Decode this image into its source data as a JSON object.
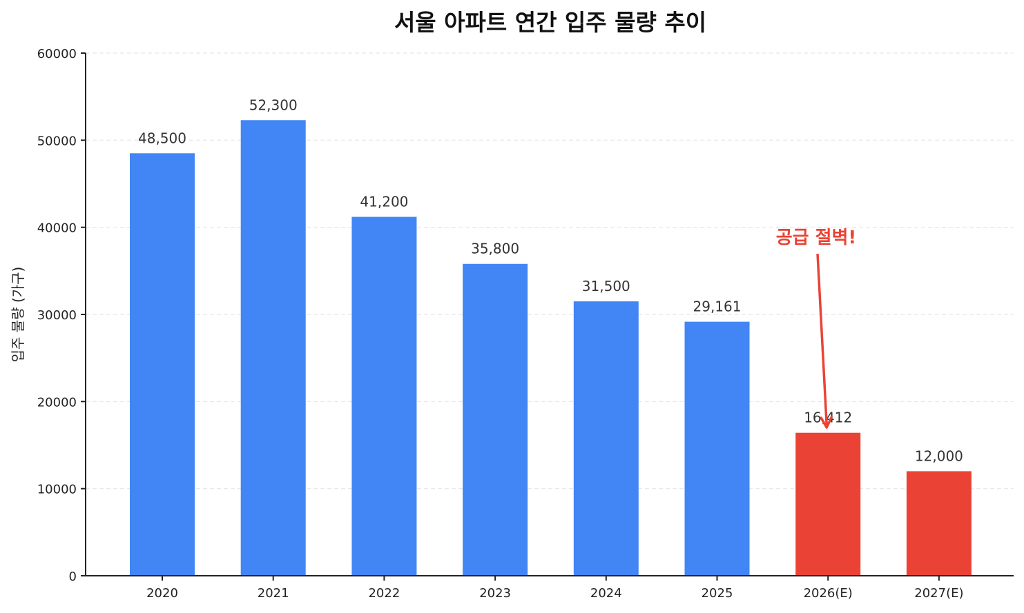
{
  "chart_data": {
    "type": "bar",
    "title": "서울 아파트 연간 입주 물량 추이",
    "xlabel": "",
    "ylabel": "입주 물량 (가구)",
    "categories": [
      "2020",
      "2021",
      "2022",
      "2023",
      "2024",
      "2025",
      "2026(E)",
      "2027(E)"
    ],
    "values": [
      48500,
      52300,
      41200,
      35800,
      31500,
      29161,
      16412,
      12000
    ],
    "value_labels": [
      "48,500",
      "52,300",
      "41,200",
      "35,800",
      "31,500",
      "29,161",
      "16,412",
      "12,000"
    ],
    "bar_colors": [
      "#4285F4",
      "#4285F4",
      "#4285F4",
      "#4285F4",
      "#4285F4",
      "#4285F4",
      "#EA4335",
      "#EA4335"
    ],
    "ylim": [
      0,
      60000
    ],
    "yticks": [
      0,
      10000,
      20000,
      30000,
      40000,
      50000,
      60000
    ],
    "ytick_labels": [
      "0",
      "10000",
      "20000",
      "30000",
      "40000",
      "50000",
      "60000"
    ],
    "grid": {
      "y": true,
      "style": "dashed",
      "color": "#e6e6e6"
    },
    "legend": null,
    "annotations": [
      {
        "text": "공급 절벽!",
        "target_category": "2026(E)",
        "color": "#EA4335",
        "arrow": true
      }
    ]
  },
  "colors": {
    "actual": "#4285F4",
    "estimate": "#EA4335",
    "annotation": "#EA4335",
    "axis": "#222222",
    "label_text": "#333333"
  }
}
